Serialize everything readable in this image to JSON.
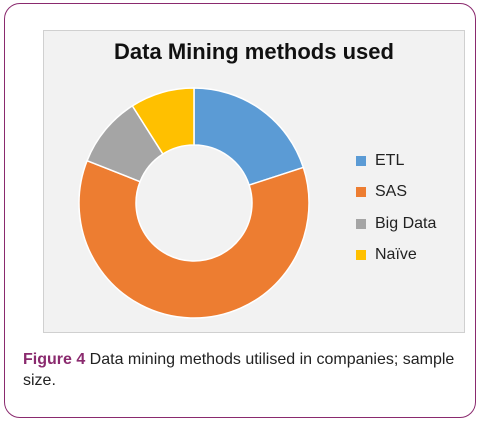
{
  "caption": {
    "label": "Figure 4",
    "text": " Data mining methods utilised in companies; sample size."
  },
  "chart_data": {
    "type": "pie",
    "style": "donut",
    "title": "Data Mining methods used",
    "legend_position": "right",
    "categories": [
      "ETL",
      "SAS",
      "Big Data",
      "Naïve"
    ],
    "values": [
      20,
      61,
      10,
      9
    ],
    "colors": [
      "#5b9bd5",
      "#ed7d31",
      "#a5a5a5",
      "#ffc000"
    ]
  }
}
